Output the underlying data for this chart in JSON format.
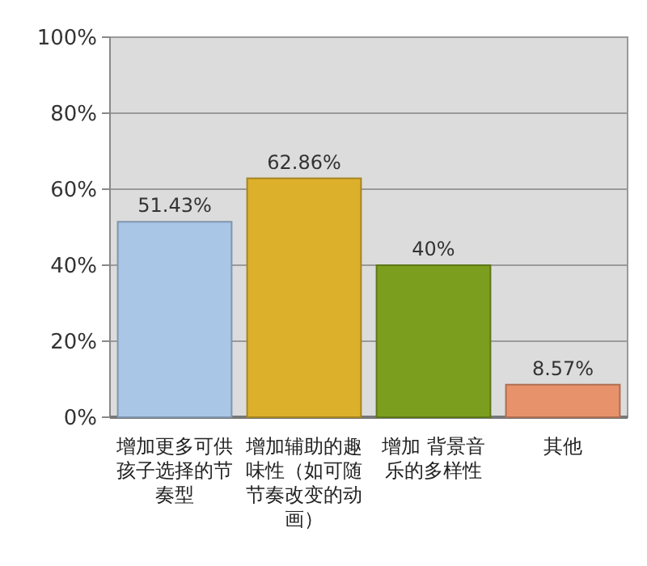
{
  "chart_data": {
    "type": "bar",
    "categories": [
      "增加更多可供孩子选择的节奏型",
      "增加辅助的趣味性（如可随节奏改变的动画）",
      "增加 背景音乐的多样性",
      "其他"
    ],
    "values": [
      51.43,
      62.86,
      40,
      8.57
    ],
    "colors": [
      "#a9c6e6",
      "#ddb02c",
      "#7c9e1e",
      "#e8926c"
    ],
    "value_labels": [
      "51.43%",
      "62.86%",
      "40%",
      "8.57%"
    ],
    "ylim": [
      0,
      100
    ],
    "yticks": [
      {
        "value": 0,
        "label": "0%"
      },
      {
        "value": 20,
        "label": "20%"
      },
      {
        "value": 40,
        "label": "40%"
      },
      {
        "value": 60,
        "label": "60%"
      },
      {
        "value": 80,
        "label": "80%"
      },
      {
        "value": 100,
        "label": "100%"
      }
    ],
    "grid": "y"
  }
}
